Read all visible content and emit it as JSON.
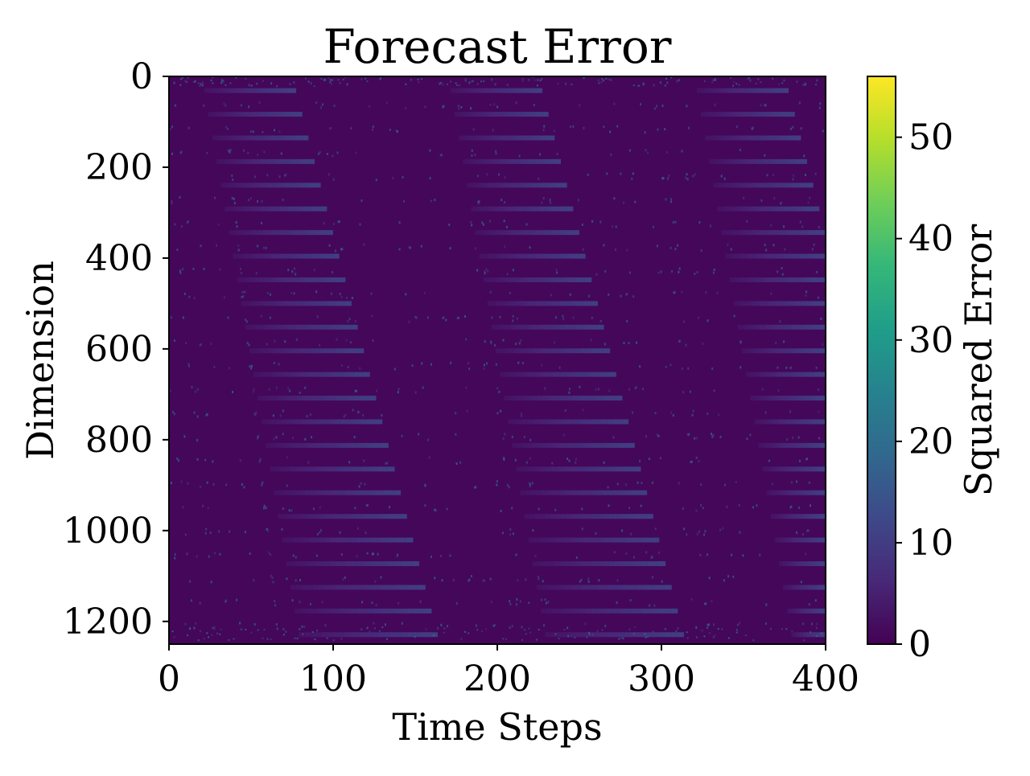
{
  "chart_data": {
    "type": "heatmap",
    "title": "Forecast Error",
    "xlabel": "Time Steps",
    "ylabel": "Dimension",
    "xlim": [
      0,
      400
    ],
    "ylim": [
      1250,
      0
    ],
    "xticks": [
      0,
      100,
      200,
      300,
      400
    ],
    "yticks": [
      0,
      200,
      400,
      600,
      800,
      1000,
      1200
    ],
    "colorbar": {
      "label": "Squared Error",
      "range": [
        0,
        56
      ],
      "ticks": [
        0,
        10,
        20,
        30,
        40,
        50
      ],
      "colormap": "viridis"
    },
    "colormap_stops": [
      "#440154",
      "#482878",
      "#3e4989",
      "#31688e",
      "#26828e",
      "#1f9e89",
      "#35b779",
      "#6ece58",
      "#b5de2b",
      "#fde725"
    ],
    "pattern": {
      "description_values": {
        "background_error": 1.0,
        "stripe_count": 24,
        "stripe_peak_error": 12,
        "speckle_peak_error": 22,
        "cycle_period_steps": 150,
        "cycle_start_offset_steps": 0
      }
    }
  }
}
